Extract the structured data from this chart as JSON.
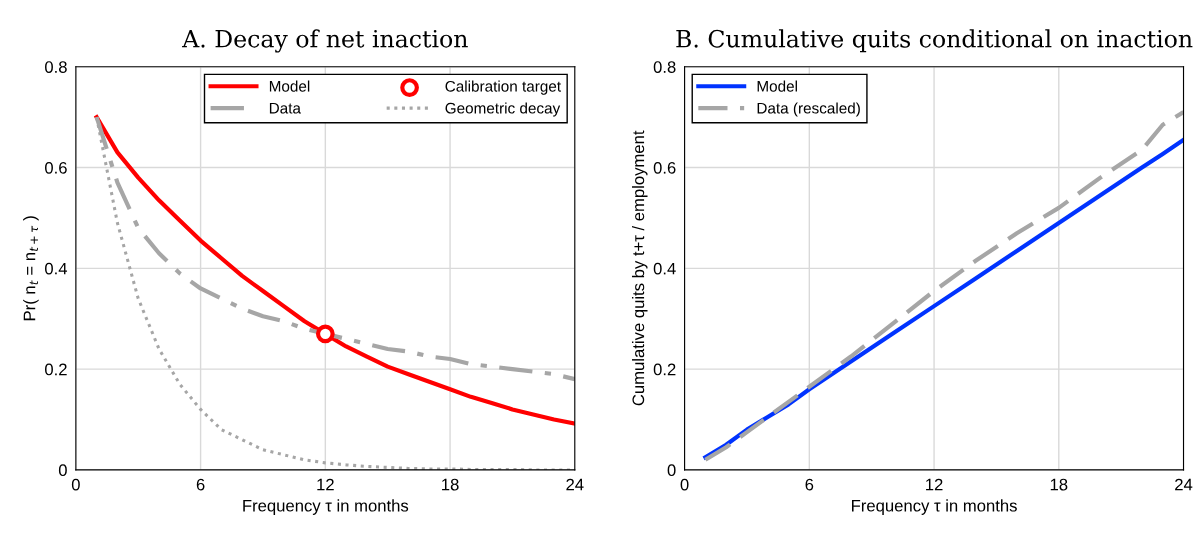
{
  "chart_data": [
    {
      "type": "line",
      "title": "A. Decay of net inaction",
      "xlabel": "Frequency τ in months",
      "ylabel": "Pr( n$_{t}$ = n$_{t+τ}$ )",
      "xlim": [
        0,
        24
      ],
      "ylim": [
        0,
        0.8
      ],
      "xticks": [
        0,
        6,
        12,
        18,
        24
      ],
      "yticks": [
        0,
        0.2,
        0.4,
        0.6,
        0.8
      ],
      "grid": true,
      "legend": "top right",
      "x": [
        1,
        2,
        3,
        4,
        5,
        6,
        7,
        8,
        9,
        10,
        11,
        12,
        13,
        14,
        15,
        16,
        17,
        18,
        19,
        20,
        21,
        22,
        23,
        24
      ],
      "series": [
        {
          "name": "Model",
          "color": "#ff0000",
          "line_style": "solid",
          "values": [
            0.7,
            0.63,
            0.58,
            0.535,
            0.495,
            0.455,
            0.42,
            0.385,
            0.355,
            0.325,
            0.295,
            0.27,
            0.245,
            0.225,
            0.205,
            0.19,
            0.175,
            0.16,
            0.145,
            0.133,
            0.12,
            0.11,
            0.1,
            0.092
          ]
        },
        {
          "name": "Data",
          "color": "#a6a6a6",
          "line_style": "dashdot",
          "values": [
            0.7,
            0.57,
            0.48,
            0.43,
            0.39,
            0.36,
            0.34,
            0.32,
            0.305,
            0.295,
            0.28,
            0.27,
            0.26,
            0.25,
            0.24,
            0.235,
            0.225,
            0.22,
            0.21,
            0.205,
            0.2,
            0.195,
            0.19,
            0.18
          ]
        },
        {
          "name": "Calibration target",
          "type": "scatter",
          "marker": "circle",
          "color": "#ff0000",
          "x": [
            12
          ],
          "values": [
            0.27
          ]
        },
        {
          "name": "Geometric decay",
          "color": "#a6a6a6",
          "line_style": "dotted",
          "values": [
            0.7,
            0.49,
            0.34,
            0.24,
            0.17,
            0.12,
            0.08,
            0.06,
            0.04,
            0.03,
            0.02,
            0.014,
            0.01,
            0.007,
            0.005,
            0.003,
            0.002,
            0.002,
            0.001,
            0.001,
            0.001,
            0,
            0,
            0
          ]
        }
      ]
    },
    {
      "type": "line",
      "title": "B. Cumulative quits conditional on inaction",
      "xlabel": "Frequency τ in months",
      "ylabel": "Cumulative quits by t+τ / employment",
      "xlim": [
        0,
        24
      ],
      "ylim": [
        0,
        0.8
      ],
      "xticks": [
        0,
        6,
        12,
        18,
        24
      ],
      "yticks": [
        0,
        0.2,
        0.4,
        0.6,
        0.8
      ],
      "grid": true,
      "legend": "top left",
      "x": [
        1,
        2,
        3,
        4,
        5,
        6,
        8,
        10,
        12,
        14,
        16,
        18,
        20,
        22,
        23,
        24
      ],
      "series": [
        {
          "name": "Model",
          "color": "#0033ff",
          "line_style": "solid",
          "values": [
            0.025,
            0.05,
            0.08,
            0.105,
            0.13,
            0.16,
            0.215,
            0.27,
            0.325,
            0.38,
            0.435,
            0.49,
            0.545,
            0.6,
            0.627,
            0.655
          ]
        },
        {
          "name": "Data (rescaled)",
          "color": "#a6a6a6",
          "line_style": "dashed",
          "values": [
            0.02,
            0.045,
            0.075,
            0.105,
            0.135,
            0.165,
            0.225,
            0.29,
            0.355,
            0.415,
            0.47,
            0.52,
            0.58,
            0.635,
            0.685,
            0.71
          ]
        }
      ]
    }
  ]
}
